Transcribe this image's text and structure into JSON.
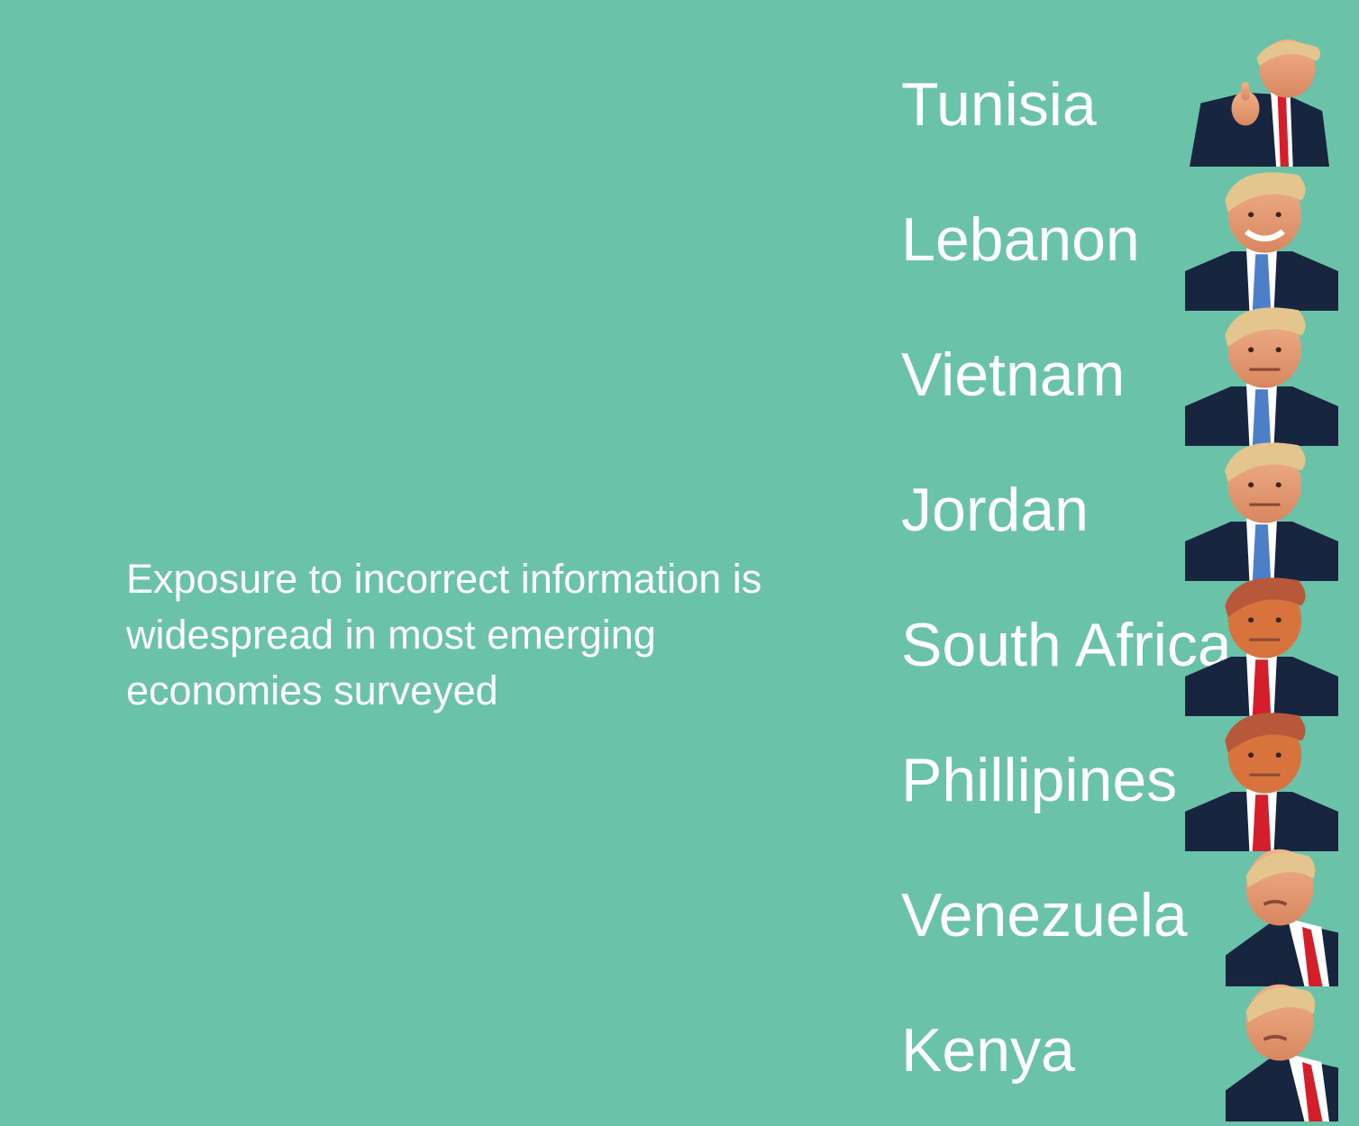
{
  "caption": "Exposure to incorrect information is widespread in most emerging economies surveyed",
  "chart_data": {
    "type": "table",
    "title": "",
    "categories": [
      "Tunisia",
      "Lebanon",
      "Vietnam",
      "Jordan",
      "South Africa",
      "Phillipines",
      "Venezuela",
      "Kenya"
    ],
    "items": [
      {
        "country": "Tunisia",
        "portrait": "thumbs-up-portrait"
      },
      {
        "country": "Lebanon",
        "portrait": "smiling-portrait"
      },
      {
        "country": "Vietnam",
        "portrait": "serious-portrait"
      },
      {
        "country": "Jordan",
        "portrait": "serious-portrait"
      },
      {
        "country": "South Africa",
        "portrait": "neutral-portrait"
      },
      {
        "country": "Phillipines",
        "portrait": "neutral-portrait"
      },
      {
        "country": "Venezuela",
        "portrait": "pouting-portrait"
      },
      {
        "country": "Kenya",
        "portrait": "pouting-portrait"
      }
    ]
  },
  "colors": {
    "background": "#6ac3a9",
    "text": "#ffffff",
    "suit": "#18253f",
    "skin": "#e8a07a",
    "hair": "#e3c58d",
    "shirt": "#ffffff",
    "tie_blue": "#4d7fc9",
    "tie_red": "#d41f2a"
  }
}
